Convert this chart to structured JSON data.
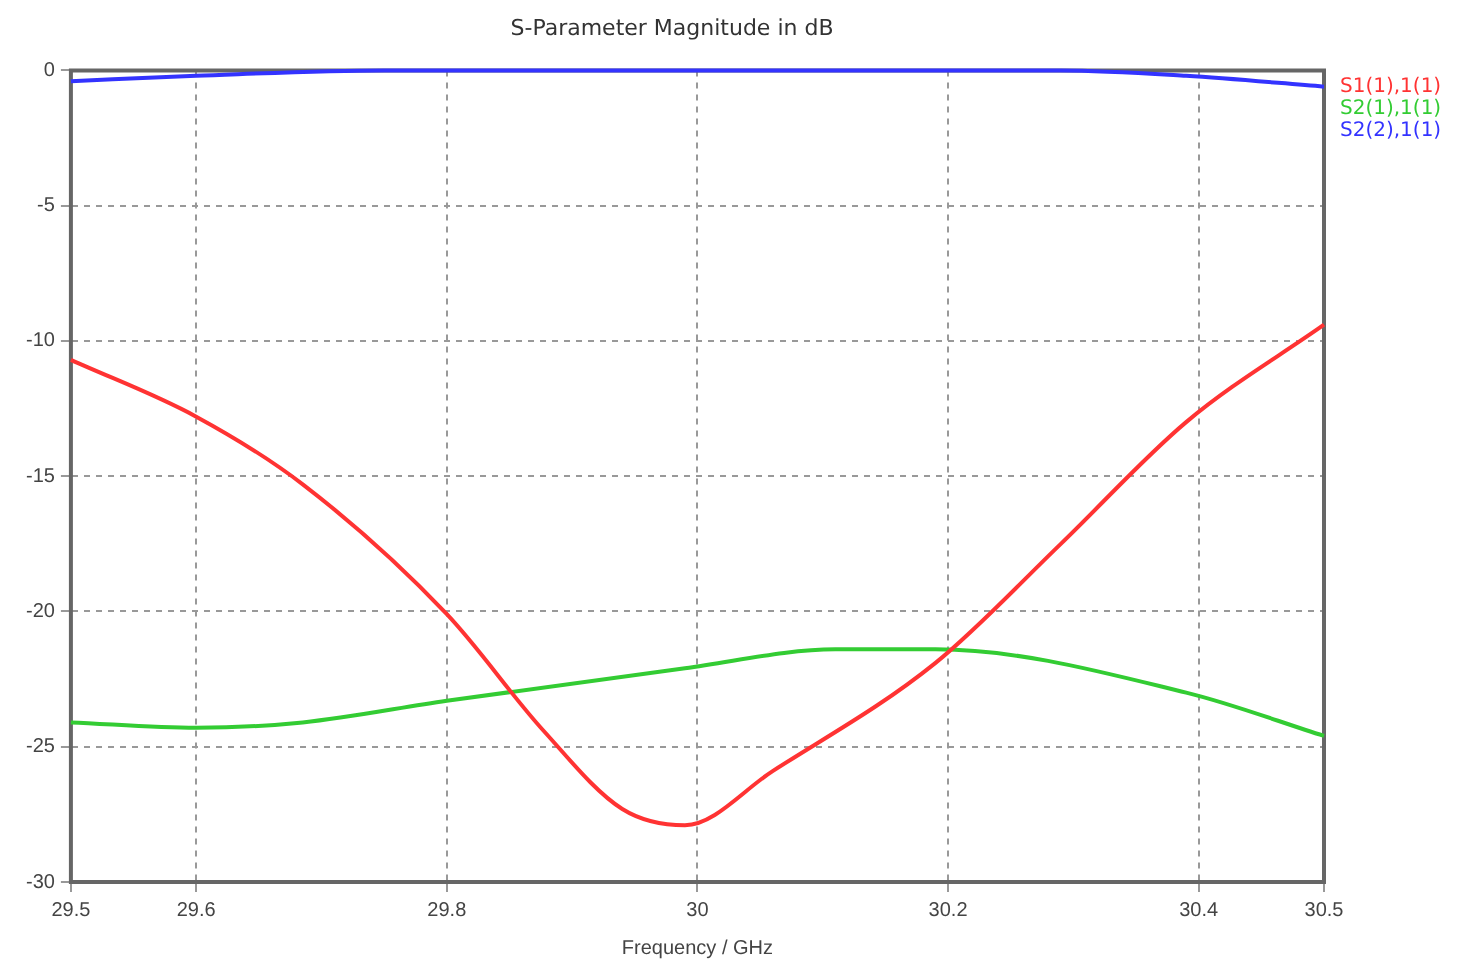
{
  "chart_data": {
    "type": "line",
    "title": "S-Parameter Magnitude in dB",
    "xlabel": "Frequency / GHz",
    "xlim": [
      29.5,
      30.5
    ],
    "xticks": [
      29.5,
      29.6,
      29.8,
      30,
      30.2,
      30.4,
      30.5
    ],
    "ylim": [
      -30,
      0
    ],
    "yticks": [
      0,
      -5,
      -10,
      -15,
      -20,
      -25,
      -30
    ],
    "grid": true,
    "legend": "top right",
    "marker": "none",
    "line_style": "solid",
    "series": [
      {
        "name": "S1(1),1(1)",
        "color": "#ff3333",
        "x": [
          29.5,
          29.6,
          29.685,
          29.8,
          29.877,
          29.94,
          29.99,
          30.06,
          30.19,
          30.29,
          30.39,
          30.5
        ],
        "values": [
          -10.7,
          -12.8,
          -15.3,
          -20.1,
          -24.4,
          -27.3,
          -27.9,
          -25.9,
          -21.9,
          -17.5,
          -13,
          -9.4
        ]
      },
      {
        "name": "S2(1),1(1)",
        "color": "#33cc33",
        "x": [
          29.5,
          29.6,
          29.685,
          29.8,
          29.99,
          30.11,
          30.19,
          30.39,
          30.5
        ],
        "values": [
          -24.1,
          -24.3,
          -24.1,
          -23.3,
          -22.1,
          -21.4,
          -21.4,
          -23,
          -24.6
        ]
      },
      {
        "name": "S2(2),1(1)",
        "color": "#3333ff",
        "x": [
          29.5,
          29.6,
          29.75,
          30,
          30.29,
          30.39,
          30.5
        ],
        "values": [
          -0.4,
          -0.2,
          0,
          0,
          0,
          -0.2,
          -0.6
        ]
      }
    ]
  }
}
